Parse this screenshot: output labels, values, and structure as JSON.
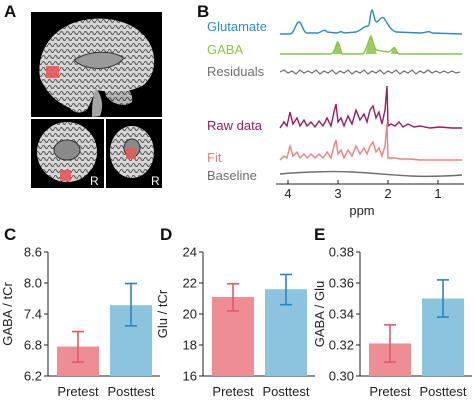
{
  "panels": {
    "A": {
      "letter": "A",
      "orientation_labels": [
        "R",
        "R"
      ],
      "colors": {
        "background": "#000000",
        "voxel": "#e85a5a",
        "tissue": "#cfcfcf"
      }
    },
    "B": {
      "letter": "B",
      "spectra": [
        {
          "key": "glutamate",
          "label": "Glutamate",
          "color": "#2b8cc4"
        },
        {
          "key": "gaba",
          "label": "GABA",
          "color": "#8bc34a"
        },
        {
          "key": "residuals",
          "label": "Residuals",
          "color": "#6e6e6e"
        },
        {
          "key": "raw",
          "label": "Raw data",
          "color": "#9c1b5b"
        },
        {
          "key": "fit",
          "label": "Fit",
          "color": "#f08080"
        },
        {
          "key": "baseline",
          "label": "Baseline",
          "color": "#6e6e6e"
        }
      ],
      "xlabel": "ppm",
      "x_ticks": [
        "4",
        "3",
        "2",
        "1"
      ]
    }
  },
  "chart_data": [
    {
      "letter": "C",
      "type": "bar",
      "categories": [
        "Pretest",
        "Posttest"
      ],
      "values": [
        6.77,
        7.57
      ],
      "error_low": [
        6.47,
        7.17
      ],
      "error_high": [
        7.06,
        7.99
      ],
      "ylabel": "GABA / tCr",
      "ylim": [
        6.2,
        8.6
      ],
      "yticks": [
        6.2,
        6.8,
        7.4,
        8.0,
        8.6
      ],
      "ytick_labels": [
        "6.2",
        "6.8",
        "7.4",
        "8.0",
        "8.6"
      ],
      "colors": [
        "#ee8e94",
        "#8cc4df"
      ],
      "error_colors": [
        "#e05a68",
        "#2b86bd"
      ]
    },
    {
      "letter": "D",
      "type": "bar",
      "categories": [
        "Pretest",
        "Posttest"
      ],
      "values": [
        21.1,
        21.6
      ],
      "error_low": [
        20.2,
        20.6
      ],
      "error_high": [
        21.95,
        22.55
      ],
      "ylabel": "Glu / tCr",
      "ylim": [
        16,
        24
      ],
      "yticks": [
        16,
        18,
        20,
        22,
        24
      ],
      "ytick_labels": [
        "16",
        "18",
        "20",
        "22",
        "24"
      ],
      "colors": [
        "#ee8e94",
        "#8cc4df"
      ],
      "error_colors": [
        "#e05a68",
        "#2b86bd"
      ]
    },
    {
      "letter": "E",
      "type": "bar",
      "categories": [
        "Pretest",
        "Posttest"
      ],
      "values": [
        0.321,
        0.35
      ],
      "error_low": [
        0.309,
        0.338
      ],
      "error_high": [
        0.333,
        0.362
      ],
      "ylabel": "GABA / Glu",
      "ylim": [
        0.3,
        0.38
      ],
      "yticks": [
        0.3,
        0.32,
        0.34,
        0.36,
        0.38
      ],
      "ytick_labels": [
        "0.30",
        "0.32",
        "0.34",
        "0.36",
        "0.38"
      ],
      "colors": [
        "#ee8e94",
        "#8cc4df"
      ],
      "error_colors": [
        "#e05a68",
        "#2b86bd"
      ]
    }
  ]
}
